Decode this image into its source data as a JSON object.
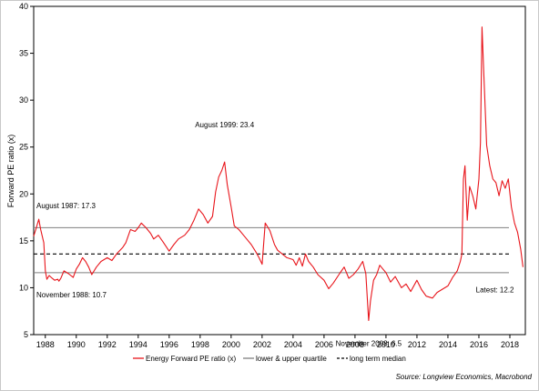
{
  "chart_data": {
    "type": "line",
    "title": "",
    "ylabel": "Forward PE ratio (x)",
    "xlabel": "",
    "xlim": [
      1987.25,
      2019.0
    ],
    "ylim": [
      5,
      40
    ],
    "yticks": [
      5,
      10,
      15,
      20,
      25,
      30,
      35,
      40
    ],
    "xticks": [
      1988,
      1990,
      1992,
      1994,
      1996,
      1998,
      2000,
      2002,
      2004,
      2006,
      2008,
      2010,
      2012,
      2014,
      2016,
      2018
    ],
    "x_tick_labels": [
      "1988",
      "1990",
      "1992",
      "1994",
      "1996",
      "1998",
      "2000",
      "2002",
      "2004",
      "2006",
      "2008",
      "2010",
      "2012",
      "2014",
      "2016",
      "2018"
    ],
    "y_tick_labels": [
      "5",
      "10",
      "15",
      "20",
      "25",
      "30",
      "35",
      "40"
    ],
    "grid": false,
    "legend_position": "bottom",
    "series": [
      {
        "name": "Energy Forward PE ratio (x)",
        "color": "#e8151b",
        "style": "solid",
        "x": [
          1987.25,
          1987.4,
          1987.58,
          1987.7,
          1987.8,
          1987.9,
          1988.0,
          1988.1,
          1988.25,
          1988.45,
          1988.6,
          1988.8,
          1988.88,
          1989.0,
          1989.2,
          1989.5,
          1989.8,
          1990.0,
          1990.2,
          1990.4,
          1990.6,
          1990.8,
          1991.0,
          1991.3,
          1991.6,
          1992.0,
          1992.3,
          1992.6,
          1993.0,
          1993.2,
          1993.5,
          1993.8,
          1994.0,
          1994.2,
          1994.5,
          1994.8,
          1995.0,
          1995.3,
          1995.6,
          1996.0,
          1996.3,
          1996.6,
          1997.0,
          1997.3,
          1997.6,
          1997.9,
          1998.2,
          1998.5,
          1998.8,
          1999.0,
          1999.2,
          1999.4,
          1999.58,
          1999.75,
          2000.0,
          2000.2,
          2000.5,
          2000.8,
          2001.0,
          2001.3,
          2001.6,
          2001.8,
          2002.0,
          2002.2,
          2002.5,
          2002.8,
          2003.0,
          2003.3,
          2003.6,
          2004.0,
          2004.2,
          2004.4,
          2004.6,
          2004.8,
          2005.0,
          2005.3,
          2005.6,
          2006.0,
          2006.3,
          2006.6,
          2007.0,
          2007.3,
          2007.6,
          2007.9,
          2008.2,
          2008.5,
          2008.7,
          2008.88,
          2009.0,
          2009.2,
          2009.4,
          2009.6,
          2009.8,
          2010.0,
          2010.3,
          2010.6,
          2011.0,
          2011.3,
          2011.6,
          2012.0,
          2012.3,
          2012.6,
          2013.0,
          2013.3,
          2013.6,
          2014.0,
          2014.3,
          2014.6,
          2014.8,
          2014.9,
          2015.0,
          2015.1,
          2015.25,
          2015.4,
          2015.6,
          2015.8,
          2016.0,
          2016.1,
          2016.2,
          2016.3,
          2016.5,
          2016.7,
          2016.9,
          2017.1,
          2017.3,
          2017.5,
          2017.7,
          2017.9,
          2018.1,
          2018.3,
          2018.5,
          2018.7,
          2018.85
        ],
        "y": [
          15.5,
          16.3,
          17.3,
          16.2,
          15.5,
          14.8,
          11.8,
          10.9,
          11.3,
          11.0,
          10.8,
          10.9,
          10.7,
          11.0,
          11.8,
          11.5,
          11.1,
          12.0,
          12.5,
          13.2,
          12.8,
          12.2,
          11.4,
          12.2,
          12.8,
          13.2,
          12.9,
          13.6,
          14.3,
          14.8,
          16.2,
          16.0,
          16.4,
          16.9,
          16.4,
          15.8,
          15.2,
          15.6,
          14.9,
          13.9,
          14.6,
          15.2,
          15.6,
          16.2,
          17.2,
          18.4,
          17.8,
          16.9,
          17.6,
          20.2,
          21.8,
          22.5,
          23.4,
          21.0,
          18.6,
          16.6,
          16.2,
          15.6,
          15.2,
          14.6,
          13.8,
          13.2,
          12.5,
          16.9,
          16.1,
          14.6,
          14.0,
          13.6,
          13.2,
          13.0,
          12.4,
          13.2,
          12.3,
          13.6,
          12.8,
          12.2,
          11.4,
          10.8,
          9.9,
          10.5,
          11.5,
          12.2,
          11.0,
          11.4,
          12.0,
          12.8,
          11.5,
          6.5,
          8.6,
          10.8,
          11.4,
          12.4,
          12.0,
          11.6,
          10.6,
          11.2,
          10.0,
          10.4,
          9.6,
          10.8,
          9.8,
          9.1,
          8.9,
          9.5,
          9.8,
          10.2,
          11.1,
          11.8,
          12.8,
          13.6,
          21.6,
          23.0,
          17.2,
          20.8,
          19.8,
          18.4,
          21.6,
          25.5,
          37.8,
          33.5,
          25.2,
          23.0,
          21.6,
          21.2,
          19.8,
          21.4,
          20.6,
          21.6,
          18.6,
          16.9,
          15.9,
          14.1,
          12.2
        ]
      },
      {
        "name": "lower & upper quartile",
        "color": "#7f7f7f",
        "style": "solid",
        "values": [
          11.6,
          16.4
        ]
      },
      {
        "name": "long term median",
        "color": "#000000",
        "style": "dashed",
        "values": [
          13.6
        ]
      }
    ],
    "annotations": [
      {
        "text": "August 1987: 17.3",
        "x": 1987.58,
        "y": 17.3
      },
      {
        "text": "November 1988: 10.7",
        "x": 1988.88,
        "y": 10.7
      },
      {
        "text": "August 1999: 23.4",
        "x": 1999.58,
        "y": 23.4
      },
      {
        "text": "November 2008: 6.5",
        "x": 2008.88,
        "y": 6.5
      },
      {
        "text": "Latest: 12.2",
        "x": 2018.85,
        "y": 12.2
      }
    ],
    "source": "Source: Longview Economics, Macrobond"
  }
}
